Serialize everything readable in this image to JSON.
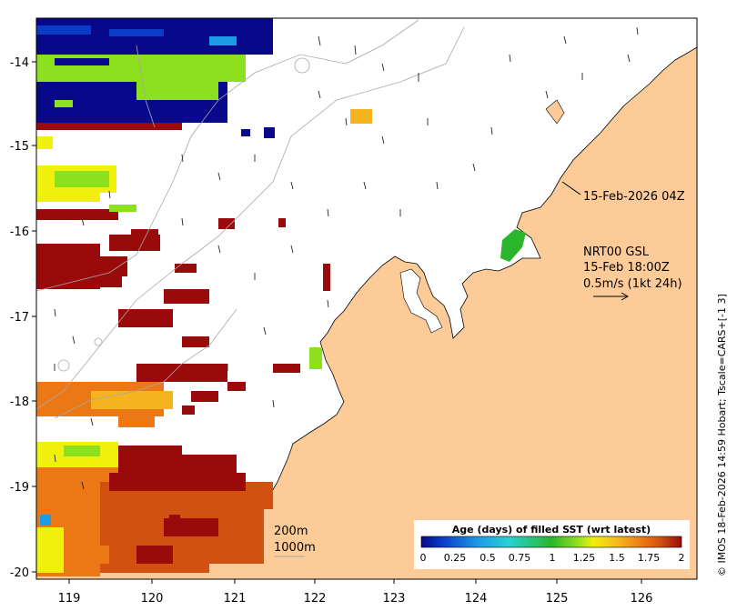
{
  "map": {
    "x_ticks": [
      "119",
      "120",
      "121",
      "122",
      "123",
      "124",
      "125",
      "126"
    ],
    "y_ticks": [
      "-14",
      "-15",
      "-16",
      "-17",
      "-18",
      "-19",
      "-20"
    ],
    "contour_labels": [
      "200m",
      "1000m"
    ],
    "timestamp_label": "15-Feb-2026 04Z",
    "current_block": {
      "line1": "NRT00 GSL",
      "line2": "15-Feb 18:00Z",
      "line3": "0.5m/s (1kt 24h)"
    },
    "credit": "© IMOS 18-Feb-2026 14:59 Hobart; Tscale=CARS+[-1 3]",
    "land_color": "#fdcb97",
    "ocean_color": "#ffffff"
  },
  "colorbar": {
    "title": "Age (days) of filled SST (wrt latest)",
    "tick_labels": [
      "0",
      "0.25",
      "0.5",
      "0.75",
      "1",
      "1.25",
      "1.5",
      "1.75",
      "2"
    ],
    "colors": [
      "#08088a",
      "#0a3cc8",
      "#1e9be6",
      "#28d2d2",
      "#2ab52a",
      "#8de01e",
      "#f0f00a",
      "#f5b41e",
      "#eb7814",
      "#d25010",
      "#9b0a0a"
    ]
  }
}
